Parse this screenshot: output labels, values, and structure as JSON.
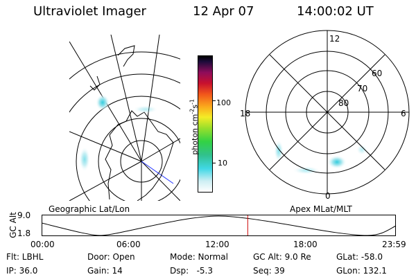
{
  "header": {
    "title": "Ultraviolet Imager",
    "date": "12 Apr 07",
    "time": "14:00:02 UT"
  },
  "colorbar": {
    "unit": "photon cm",
    "unit_exp1": "-2",
    "unit_mid": "s",
    "unit_exp2": "-1",
    "tick_100": "100",
    "tick_10": "10"
  },
  "polar": {
    "lat_labels": [
      "60",
      "70",
      "80"
    ],
    "mlt_labels": [
      "12",
      "18",
      "6",
      "0"
    ]
  },
  "projection_labels": {
    "left": "Geographic Lat/Lon",
    "right": "Apex MLat/MLT"
  },
  "altitude_plot": {
    "ylabel": "GC Alt",
    "y_ticks": [
      "9.0",
      "1.8"
    ],
    "x_ticks": [
      "00:00",
      "06:00",
      "12:00",
      "18:00",
      "23:59"
    ],
    "current_time_fraction": 0.583
  },
  "footer": {
    "filter": "Flt: LBHL",
    "ip": "IP: 36.0",
    "door": "Door: Open",
    "gain": "Gain: 14",
    "mode": "Mode: Normal",
    "dsp": "Dsp:   -5.3",
    "gc_alt": "GC Alt: 9.0 Re",
    "seq": "Seq: 39",
    "glat": "GLat: -58.0",
    "glon": "GLon: 132.1"
  },
  "colors": {
    "marker": "#cc0000",
    "meridian": "#2233ff",
    "aurora": "#33ccdd"
  }
}
